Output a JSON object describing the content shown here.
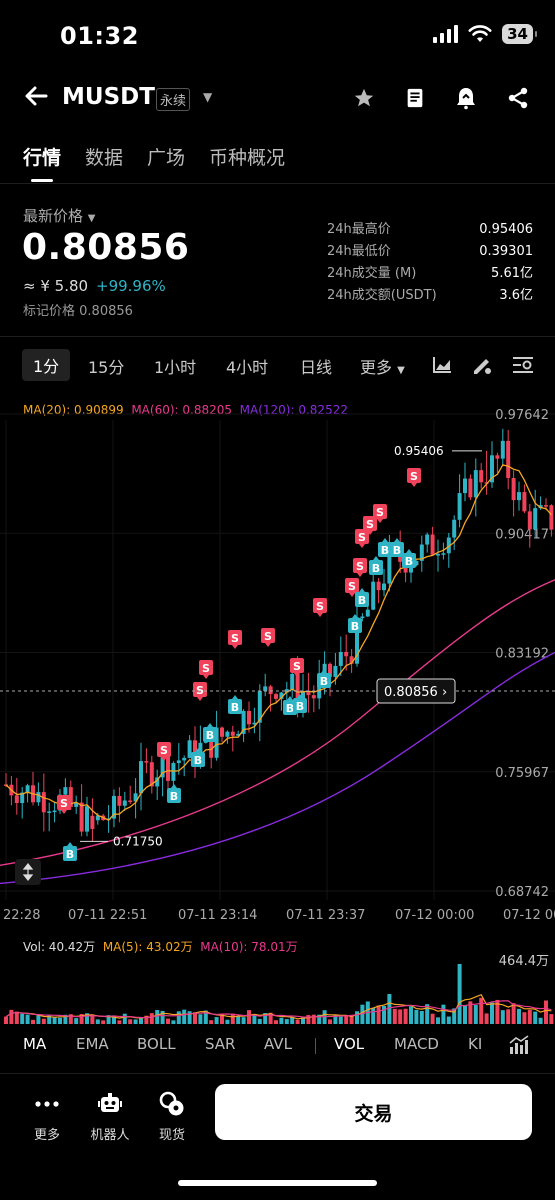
{
  "status": {
    "time": "01:32",
    "battery": "34"
  },
  "header": {
    "symbol": "MUSDT",
    "contract_type": "永续"
  },
  "tabs": [
    "行情",
    "数据",
    "广场",
    "币种概况"
  ],
  "price": {
    "label": "最新价格",
    "last": "0.80856",
    "cny": "≈ ¥ 5.80",
    "change": "+99.96%",
    "mark_label": "标记价格",
    "mark": "0.80856"
  },
  "stats": [
    {
      "label": "24h最高价",
      "value": "0.95406"
    },
    {
      "label": "24h最低价",
      "value": "0.39301"
    },
    {
      "label": "24h成交量 (M)",
      "value": "5.61亿"
    },
    {
      "label": "24h成交额(USDT)",
      "value": "3.6亿"
    }
  ],
  "intervals": [
    "1分",
    "15分",
    "1小时",
    "4小时",
    "日线",
    "更多"
  ],
  "ma_legend": {
    "ma20": "MA(20): 0.90899",
    "ma60": "MA(60): 0.88205",
    "ma120": "MA(120): 0.82522"
  },
  "chart": {
    "y_labels": [
      "0.97642",
      "0.90417",
      "0.83192",
      "0.75967",
      "0.68742"
    ],
    "x_labels": [
      "22:28",
      "07-11 22:51",
      "07-11 23:14",
      "07-11 23:37",
      "07-12 00:00",
      "07-12 00"
    ],
    "high_label": "0.95406",
    "low_label": "0.71750",
    "current_price": "0.80856",
    "current_price_arrow": "›"
  },
  "chart_data": {
    "type": "candlestick",
    "y_range": [
      0.68742,
      0.97642
    ],
    "y_ticks": [
      0.97642,
      0.90417,
      0.83192,
      0.75967,
      0.68742
    ],
    "x_ticks": [
      "22:28",
      "07-11 22:51",
      "07-11 23:14",
      "07-11 23:37",
      "07-12 00:00",
      "07-12 00"
    ],
    "high": 0.95406,
    "low": 0.7175,
    "last": 0.80856,
    "colors": {
      "up": "#2fb4c5",
      "down": "#f0435b",
      "ma20": "#f5a623",
      "ma60": "#e83a8c",
      "ma120": "#8a2be2"
    }
  },
  "volume": {
    "vol": "Vol: 40.42万",
    "ma5": "MA(5): 43.02万",
    "ma10": "MA(10): 78.01万",
    "max_label": "464.4万"
  },
  "indicators": [
    "MA",
    "EMA",
    "BOLL",
    "SAR",
    "AVL",
    "VOL",
    "MACD",
    "KI"
  ],
  "bottom": {
    "more": "更多",
    "bot": "机器人",
    "spot": "现货",
    "trade": "交易"
  }
}
